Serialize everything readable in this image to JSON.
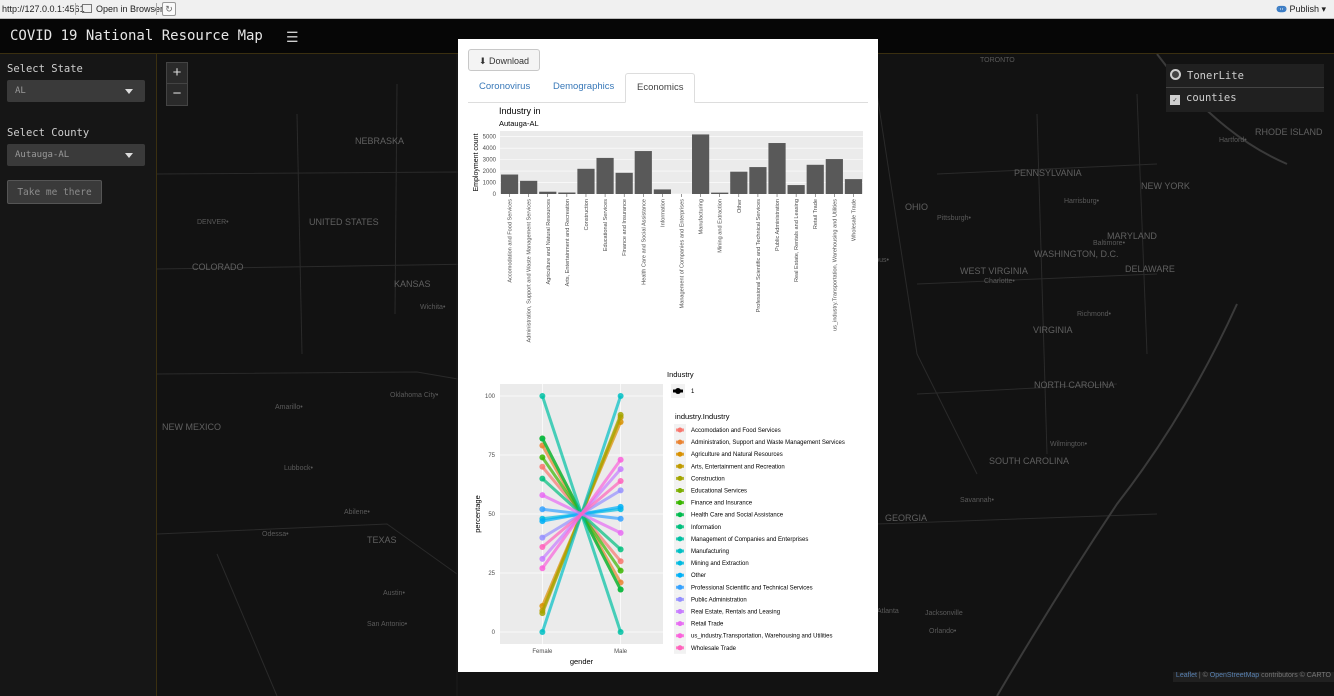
{
  "browser": {
    "url": "http://127.0.0.1:4561",
    "open_label": "Open in Browser",
    "publish_label": "Publish"
  },
  "app": {
    "title": "COVID 19 National Resource Map"
  },
  "sidebar": {
    "state_label": "Select State",
    "state_value": "AL",
    "county_label": "Select County",
    "county_value": "Autauga-AL",
    "go_button": "Take me there"
  },
  "map": {
    "zoom_in": "+",
    "zoom_out": "−",
    "layers": {
      "base": "TonerLite",
      "overlay": "counties"
    },
    "attribution": {
      "leaflet": "Leaflet",
      "sep": " | © ",
      "osm": "OpenStreetMap",
      "rest": " contributors © CARTO"
    },
    "labels": [
      {
        "t": "DENVER•",
        "c": "city"
      },
      {
        "t": "COLORADO",
        "c": "state"
      },
      {
        "t": "UNITED STATES",
        "c": "state"
      },
      {
        "t": "KANSAS",
        "c": "state"
      },
      {
        "t": "NEBRASKA",
        "c": "state"
      },
      {
        "t": "Wichita•",
        "c": "city"
      },
      {
        "t": "Oklahoma City•",
        "c": "city"
      },
      {
        "t": "TEXAS",
        "c": "state"
      },
      {
        "t": "Amarillo•",
        "c": "city"
      },
      {
        "t": "Lubbock•",
        "c": "city"
      },
      {
        "t": "Abilene•",
        "c": "city"
      },
      {
        "t": "Odessa•",
        "c": "city"
      },
      {
        "t": "San Antonio•",
        "c": "city"
      },
      {
        "t": "Austin•",
        "c": "city"
      },
      {
        "t": "NEW MEXICO",
        "c": "state"
      },
      {
        "t": "OHIO",
        "c": "state"
      },
      {
        "t": "PENNSYLVANIA",
        "c": "state"
      },
      {
        "t": "NEW YORK",
        "c": "state"
      },
      {
        "t": "MARYLAND",
        "c": "state"
      },
      {
        "t": "WASHINGTON, D.C.",
        "c": "state"
      },
      {
        "t": "WEST VIRGINIA",
        "c": "state"
      },
      {
        "t": "VIRGINIA",
        "c": "state"
      },
      {
        "t": "NORTH CAROLINA",
        "c": "state"
      },
      {
        "t": "SOUTH CAROLINA",
        "c": "state"
      },
      {
        "t": "GEORGIA",
        "c": "state"
      },
      {
        "t": "DELAWARE",
        "c": "state"
      },
      {
        "t": "RHODE ISLAND",
        "c": "state"
      },
      {
        "t": "TORONTO",
        "c": "city"
      },
      {
        "t": "Richmond•",
        "c": "city"
      },
      {
        "t": "Charlotte•",
        "c": "city"
      },
      {
        "t": "Atlanta",
        "c": "city"
      },
      {
        "t": "Savannah•",
        "c": "city"
      },
      {
        "t": "Jacksonville",
        "c": "city"
      },
      {
        "t": "Orlando•",
        "c": "city"
      },
      {
        "t": "Hartford•",
        "c": "city"
      },
      {
        "t": "Pittsburgh•",
        "c": "city"
      },
      {
        "t": "Harrisburg•",
        "c": "city"
      },
      {
        "t": "Wilmington•",
        "c": "city"
      },
      {
        "t": "Baltimore•",
        "c": "city"
      },
      {
        "t": "Columbus•",
        "c": "city"
      }
    ]
  },
  "modal": {
    "download_label": "Download",
    "tabs": [
      "Coronovirus",
      "Demographics",
      "Economics"
    ],
    "active_tab": 2
  },
  "colors": {
    "bar": "#595959",
    "panel": "#ebebeb",
    "accent": "#3878b8"
  },
  "chart_data": [
    {
      "type": "bar",
      "title": "Industry in",
      "subtitle": "Autauga-AL",
      "xlabel": "",
      "ylabel": "Employment count",
      "ylim": [
        0,
        5500
      ],
      "yticks": [
        0,
        1000,
        2000,
        3000,
        4000,
        5000
      ],
      "categories": [
        "Accomodation and Food Services",
        "Administration, Support and Waste Management Services",
        "Agriculture and Natural Resources",
        "Arts, Entertainment and Recreation",
        "Construction",
        "Educational Services",
        "Finance and Insurance",
        "Health Care and Social Assistance",
        "Information",
        "Management of Companies and Enterprises",
        "Manufacturing",
        "Mining and Extraction",
        "Other",
        "Professional Scientific and Technical Services",
        "Public Administration",
        "Real Estate, Rentals and Leasing",
        "Retail Trade",
        "us_industry.Transportation, Warehousing and Utilities",
        "Wholesale Trade"
      ],
      "values": [
        1700,
        1150,
        200,
        130,
        2200,
        3150,
        1850,
        3750,
        400,
        0,
        5200,
        120,
        1950,
        2350,
        4450,
        780,
        2550,
        3050,
        1300
      ]
    },
    {
      "type": "line",
      "xlabel": "gender",
      "ylabel": "percentage",
      "x": [
        "Female",
        "Male"
      ],
      "ylim": [
        0,
        100
      ],
      "yticks": [
        0,
        25,
        50,
        75,
        100
      ],
      "legend_size_title": "Industry",
      "legend_size_item": "1",
      "legend_title": "industry.Industry",
      "series": [
        {
          "name": "Accomodation and Food Services",
          "values": [
            70,
            30
          ],
          "color": "#F8766D"
        },
        {
          "name": "Administration, Support and Waste Management Services",
          "values": [
            79,
            21
          ],
          "color": "#EA8331"
        },
        {
          "name": "Agriculture and Natural Resources",
          "values": [
            11,
            89
          ],
          "color": "#D89000"
        },
        {
          "name": "Arts, Entertainment and Recreation",
          "values": [
            9,
            91
          ],
          "color": "#C09B00"
        },
        {
          "name": "Construction",
          "values": [
            8,
            92
          ],
          "color": "#A3A500"
        },
        {
          "name": "Educational Services",
          "values": [
            82,
            18
          ],
          "color": "#7CAE00"
        },
        {
          "name": "Finance and Insurance",
          "values": [
            74,
            26
          ],
          "color": "#39B600"
        },
        {
          "name": "Health Care and Social Assistance",
          "values": [
            82,
            18
          ],
          "color": "#00BB4E"
        },
        {
          "name": "Information",
          "values": [
            65,
            35
          ],
          "color": "#00BF7D"
        },
        {
          "name": "Management of Companies and Enterprises",
          "values": [
            100,
            0
          ],
          "color": "#00C1A3"
        },
        {
          "name": "Manufacturing",
          "values": [
            0,
            100
          ],
          "color": "#00BFC4"
        },
        {
          "name": "Mining and Extraction",
          "values": [
            48,
            52
          ],
          "color": "#00BAE0"
        },
        {
          "name": "Other",
          "values": [
            47,
            53
          ],
          "color": "#00B0F6"
        },
        {
          "name": "Professional Scientific and Technical Services",
          "values": [
            52,
            48
          ],
          "color": "#35A2FF"
        },
        {
          "name": "Public Administration",
          "values": [
            40,
            60
          ],
          "color": "#9590FF"
        },
        {
          "name": "Real Estate, Rentals and Leasing",
          "values": [
            31,
            69
          ],
          "color": "#C77CFF"
        },
        {
          "name": "Retail Trade",
          "values": [
            58,
            42
          ],
          "color": "#E76BF3"
        },
        {
          "name": "us_industry.Transportation, Warehousing and Utilities",
          "values": [
            27,
            73
          ],
          "color": "#FA62DB"
        },
        {
          "name": "Wholesale Trade",
          "values": [
            36,
            64
          ],
          "color": "#FF62BC"
        }
      ]
    }
  ]
}
